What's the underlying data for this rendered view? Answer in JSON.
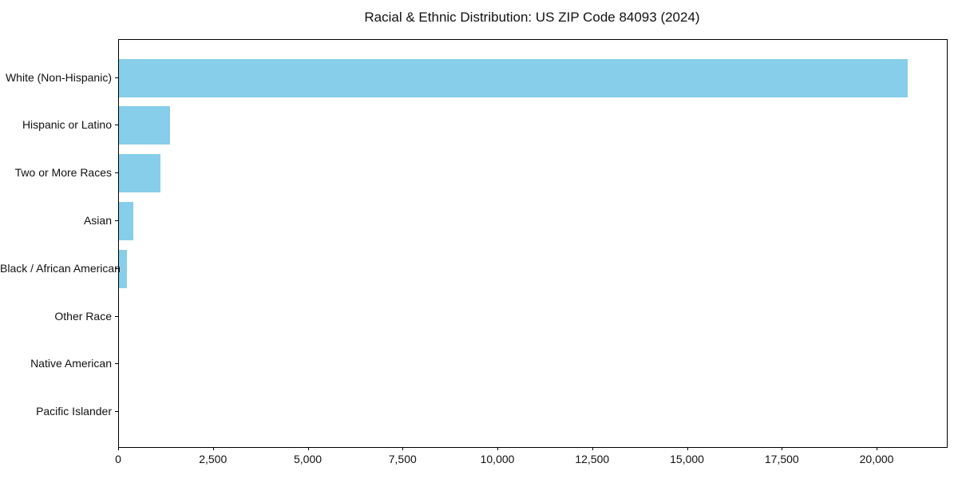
{
  "title": "Racial & Ethnic Distribution: US ZIP Code 84093 (2024)",
  "chart_data": {
    "type": "bar",
    "orientation": "horizontal",
    "title": "Racial & Ethnic Distribution: US ZIP Code 84093 (2024)",
    "categories": [
      "White (Non-Hispanic)",
      "Hispanic or Latino",
      "Two or More Races",
      "Asian",
      "Black / African American",
      "Other Race",
      "Native American",
      "Pacific Islander"
    ],
    "values": [
      20800,
      1350,
      1090,
      370,
      210,
      0,
      0,
      0
    ],
    "xlabel": "",
    "ylabel": "",
    "xlim": [
      0,
      21830
    ],
    "x_ticks": [
      0,
      2500,
      5000,
      7500,
      10000,
      12500,
      15000,
      17500,
      20000
    ],
    "x_tick_labels": [
      "0",
      "2,500",
      "5,000",
      "7,500",
      "10,000",
      "12,500",
      "15,000",
      "17,500",
      "20,000"
    ],
    "bar_color": "#87CEEB",
    "axis_color": "#000000",
    "text_color": "#111111",
    "grid": false,
    "legend": false
  }
}
